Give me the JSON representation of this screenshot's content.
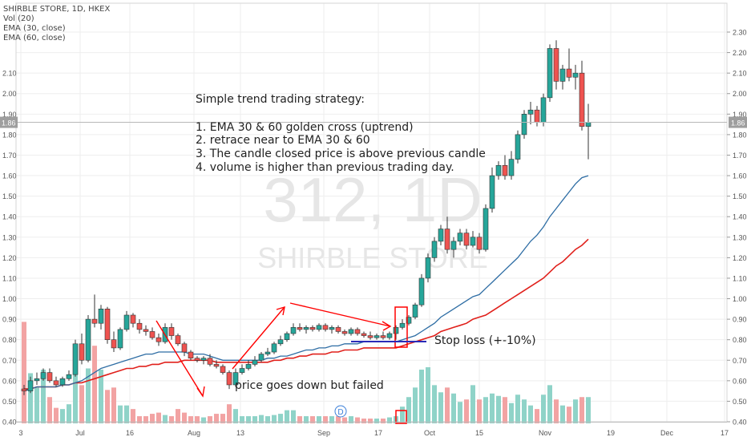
{
  "header": {
    "symbol_line": "SHIRBLE STORE, 1D, HKEX",
    "indicator_1": "Vol (20)",
    "indicator_2": "EMA (30, close)",
    "indicator_3": "EMA (60, close)"
  },
  "watermark": {
    "line1": "312, 1D",
    "line2": "SHIRBLE STORE"
  },
  "price_label": "1.86",
  "strategy_note": {
    "title": "Simple trend trading strategy:",
    "items": [
      "1. EMA 30 & 60 golden cross (uptrend)",
      "2. retrace near to EMA 30 & 60",
      "3. The candle closed price is above previous candle",
      "4. volume is higher than previous trading day."
    ]
  },
  "annotations": {
    "stop_loss": "Stop loss (+-10%)",
    "price_failed": "price goes down but failed",
    "dividend_marker": "D"
  },
  "colors": {
    "up": "#26a69a",
    "down": "#ef5350",
    "up_vol": "#8fd3c8",
    "down_vol": "#f2a3a3",
    "ema30": "#2e6da4",
    "ema60": "#e0201b",
    "annot_red": "#ff0000",
    "stop_line": "#2b2bb8",
    "grid": "#eeeeee",
    "axis_text": "#555555"
  },
  "chart_data": {
    "type": "candlestick",
    "ylim": [
      0.4,
      2.3
    ],
    "price_axis_ticks": [
      "0.40",
      "0.50",
      "0.60",
      "0.70",
      "0.80",
      "0.90",
      "1.00",
      "1.10",
      "1.20",
      "1.30",
      "1.40",
      "1.50",
      "1.60",
      "1.70",
      "1.80",
      "1.90",
      "2.00",
      "2.10",
      "2.20",
      "2.30"
    ],
    "time_axis_labels": [
      "3",
      "Jul",
      "16",
      "Aug",
      "13",
      "Sep",
      "17",
      "Oct",
      "15",
      "Nov",
      "19",
      "Dec",
      "17"
    ],
    "candles": [
      [
        0.56,
        0.58,
        0.53,
        0.55
      ],
      [
        0.55,
        0.62,
        0.54,
        0.6
      ],
      [
        0.6,
        0.64,
        0.58,
        0.61
      ],
      [
        0.61,
        0.66,
        0.6,
        0.64
      ],
      [
        0.64,
        0.66,
        0.59,
        0.6
      ],
      [
        0.6,
        0.62,
        0.57,
        0.58
      ],
      [
        0.58,
        0.62,
        0.57,
        0.61
      ],
      [
        0.61,
        0.65,
        0.6,
        0.63
      ],
      [
        0.63,
        0.8,
        0.62,
        0.78
      ],
      [
        0.78,
        0.83,
        0.68,
        0.7
      ],
      [
        0.7,
        0.92,
        0.69,
        0.9
      ],
      [
        0.9,
        1.02,
        0.86,
        0.88
      ],
      [
        0.88,
        0.97,
        0.85,
        0.95
      ],
      [
        0.95,
        0.96,
        0.78,
        0.8
      ],
      [
        0.8,
        0.84,
        0.74,
        0.76
      ],
      [
        0.76,
        0.86,
        0.75,
        0.85
      ],
      [
        0.85,
        0.94,
        0.84,
        0.92
      ],
      [
        0.92,
        0.93,
        0.86,
        0.88
      ],
      [
        0.88,
        0.9,
        0.83,
        0.85
      ],
      [
        0.85,
        0.87,
        0.82,
        0.84
      ],
      [
        0.84,
        0.86,
        0.8,
        0.81
      ],
      [
        0.81,
        0.83,
        0.77,
        0.79
      ],
      [
        0.79,
        0.88,
        0.78,
        0.86
      ],
      [
        0.86,
        0.88,
        0.8,
        0.82
      ],
      [
        0.82,
        0.83,
        0.77,
        0.78
      ],
      [
        0.78,
        0.79,
        0.72,
        0.74
      ],
      [
        0.74,
        0.75,
        0.7,
        0.71
      ],
      [
        0.71,
        0.72,
        0.69,
        0.7
      ],
      [
        0.7,
        0.72,
        0.68,
        0.71
      ],
      [
        0.71,
        0.73,
        0.67,
        0.68
      ],
      [
        0.68,
        0.7,
        0.66,
        0.67
      ],
      [
        0.67,
        0.68,
        0.63,
        0.64
      ],
      [
        0.64,
        0.65,
        0.56,
        0.58
      ],
      [
        0.58,
        0.66,
        0.57,
        0.64
      ],
      [
        0.64,
        0.68,
        0.63,
        0.66
      ],
      [
        0.66,
        0.7,
        0.65,
        0.68
      ],
      [
        0.68,
        0.72,
        0.67,
        0.7
      ],
      [
        0.7,
        0.74,
        0.69,
        0.73
      ],
      [
        0.73,
        0.76,
        0.72,
        0.74
      ],
      [
        0.74,
        0.79,
        0.73,
        0.78
      ],
      [
        0.78,
        0.82,
        0.77,
        0.8
      ],
      [
        0.8,
        0.84,
        0.79,
        0.83
      ],
      [
        0.83,
        0.88,
        0.82,
        0.86
      ],
      [
        0.86,
        0.88,
        0.84,
        0.85
      ],
      [
        0.85,
        0.87,
        0.83,
        0.86
      ],
      [
        0.86,
        0.87,
        0.84,
        0.85
      ],
      [
        0.85,
        0.88,
        0.84,
        0.87
      ],
      [
        0.87,
        0.88,
        0.84,
        0.85
      ],
      [
        0.85,
        0.87,
        0.83,
        0.86
      ],
      [
        0.86,
        0.87,
        0.83,
        0.84
      ],
      [
        0.84,
        0.85,
        0.82,
        0.83
      ],
      [
        0.83,
        0.86,
        0.82,
        0.85
      ],
      [
        0.85,
        0.86,
        0.82,
        0.83
      ],
      [
        0.83,
        0.84,
        0.81,
        0.82
      ],
      [
        0.82,
        0.84,
        0.8,
        0.81
      ],
      [
        0.81,
        0.83,
        0.8,
        0.82
      ],
      [
        0.82,
        0.84,
        0.8,
        0.81
      ],
      [
        0.81,
        0.84,
        0.8,
        0.83
      ],
      [
        0.83,
        0.87,
        0.8,
        0.86
      ],
      [
        0.86,
        0.9,
        0.85,
        0.88
      ],
      [
        0.88,
        0.92,
        0.87,
        0.91
      ],
      [
        0.91,
        0.98,
        0.9,
        0.97
      ],
      [
        0.97,
        1.12,
        0.96,
        1.1
      ],
      [
        1.1,
        1.22,
        1.08,
        1.2
      ],
      [
        1.2,
        1.3,
        1.18,
        1.28
      ],
      [
        1.28,
        1.36,
        1.26,
        1.34
      ],
      [
        1.34,
        1.4,
        1.22,
        1.24
      ],
      [
        1.24,
        1.3,
        1.2,
        1.28
      ],
      [
        1.28,
        1.34,
        1.26,
        1.32
      ],
      [
        1.32,
        1.34,
        1.24,
        1.26
      ],
      [
        1.26,
        1.33,
        1.25,
        1.3
      ],
      [
        1.3,
        1.32,
        1.22,
        1.24
      ],
      [
        1.24,
        1.46,
        1.23,
        1.44
      ],
      [
        1.44,
        1.64,
        1.42,
        1.6
      ],
      [
        1.6,
        1.67,
        1.58,
        1.65
      ],
      [
        1.65,
        1.7,
        1.58,
        1.6
      ],
      [
        1.6,
        1.72,
        1.58,
        1.68
      ],
      [
        1.68,
        1.82,
        1.66,
        1.8
      ],
      [
        1.8,
        1.92,
        1.78,
        1.9
      ],
      [
        1.9,
        1.96,
        1.85,
        1.92
      ],
      [
        1.92,
        1.94,
        1.84,
        1.86
      ],
      [
        1.86,
        2.0,
        1.84,
        1.98
      ],
      [
        1.98,
        2.24,
        1.96,
        2.22
      ],
      [
        2.22,
        2.26,
        2.02,
        2.06
      ],
      [
        2.06,
        2.14,
        2.02,
        2.12
      ],
      [
        2.12,
        2.22,
        2.06,
        2.08
      ],
      [
        2.08,
        2.14,
        2.02,
        2.1
      ],
      [
        2.1,
        2.16,
        1.82,
        1.84
      ],
      [
        1.84,
        1.95,
        1.68,
        1.86
      ]
    ],
    "volume_scale": [
      0,
      0.94
    ],
    "volume": [
      0.85,
      0.42,
      0.3,
      0.45,
      0.22,
      0.13,
      0.12,
      0.16,
      0.55,
      0.32,
      0.46,
      0.65,
      0.45,
      0.28,
      0.3,
      0.15,
      0.15,
      0.12,
      0.06,
      0.06,
      0.08,
      0.09,
      0.07,
      0.06,
      0.12,
      0.09,
      0.06,
      0.06,
      0.05,
      0.06,
      0.08,
      0.08,
      0.16,
      0.12,
      0.06,
      0.06,
      0.06,
      0.07,
      0.06,
      0.07,
      0.08,
      0.11,
      0.11,
      0.06,
      0.06,
      0.06,
      0.06,
      0.06,
      0.06,
      0.06,
      0.05,
      0.06,
      0.05,
      0.04,
      0.04,
      0.04,
      0.04,
      0.05,
      0.06,
      0.14,
      0.22,
      0.3,
      0.45,
      0.47,
      0.32,
      0.26,
      0.3,
      0.25,
      0.18,
      0.2,
      0.32,
      0.2,
      0.22,
      0.25,
      0.23,
      0.22,
      0.17,
      0.24,
      0.2,
      0.15,
      0.12,
      0.24,
      0.32,
      0.2,
      0.15,
      0.14,
      0.2,
      0.22,
      0.22
    ],
    "ema30": [
      0.55,
      0.56,
      0.57,
      0.57,
      0.57,
      0.57,
      0.58,
      0.58,
      0.59,
      0.6,
      0.62,
      0.64,
      0.66,
      0.67,
      0.68,
      0.69,
      0.7,
      0.71,
      0.72,
      0.73,
      0.73,
      0.74,
      0.74,
      0.74,
      0.74,
      0.74,
      0.73,
      0.73,
      0.73,
      0.72,
      0.71,
      0.7,
      0.7,
      0.7,
      0.7,
      0.7,
      0.7,
      0.7,
      0.71,
      0.71,
      0.72,
      0.72,
      0.73,
      0.74,
      0.75,
      0.75,
      0.76,
      0.76,
      0.77,
      0.77,
      0.78,
      0.78,
      0.78,
      0.79,
      0.79,
      0.79,
      0.79,
      0.79,
      0.79,
      0.8,
      0.81,
      0.82,
      0.84,
      0.86,
      0.88,
      0.91,
      0.93,
      0.95,
      0.97,
      0.99,
      1.01,
      1.02,
      1.05,
      1.08,
      1.11,
      1.14,
      1.17,
      1.2,
      1.24,
      1.28,
      1.31,
      1.35,
      1.4,
      1.44,
      1.48,
      1.52,
      1.56,
      1.59,
      1.6
    ],
    "ema60": [
      0.56,
      0.56,
      0.57,
      0.57,
      0.57,
      0.57,
      0.58,
      0.58,
      0.59,
      0.59,
      0.6,
      0.61,
      0.62,
      0.63,
      0.64,
      0.65,
      0.66,
      0.66,
      0.67,
      0.67,
      0.68,
      0.68,
      0.69,
      0.69,
      0.69,
      0.7,
      0.7,
      0.7,
      0.7,
      0.7,
      0.69,
      0.69,
      0.69,
      0.69,
      0.69,
      0.69,
      0.69,
      0.69,
      0.69,
      0.7,
      0.7,
      0.71,
      0.71,
      0.72,
      0.72,
      0.73,
      0.73,
      0.73,
      0.74,
      0.74,
      0.75,
      0.75,
      0.75,
      0.76,
      0.76,
      0.76,
      0.76,
      0.76,
      0.76,
      0.77,
      0.78,
      0.79,
      0.8,
      0.81,
      0.82,
      0.84,
      0.85,
      0.86,
      0.87,
      0.88,
      0.9,
      0.91,
      0.92,
      0.94,
      0.96,
      0.98,
      1.0,
      1.02,
      1.04,
      1.06,
      1.08,
      1.1,
      1.13,
      1.16,
      1.18,
      1.21,
      1.24,
      1.26,
      1.29
    ]
  }
}
